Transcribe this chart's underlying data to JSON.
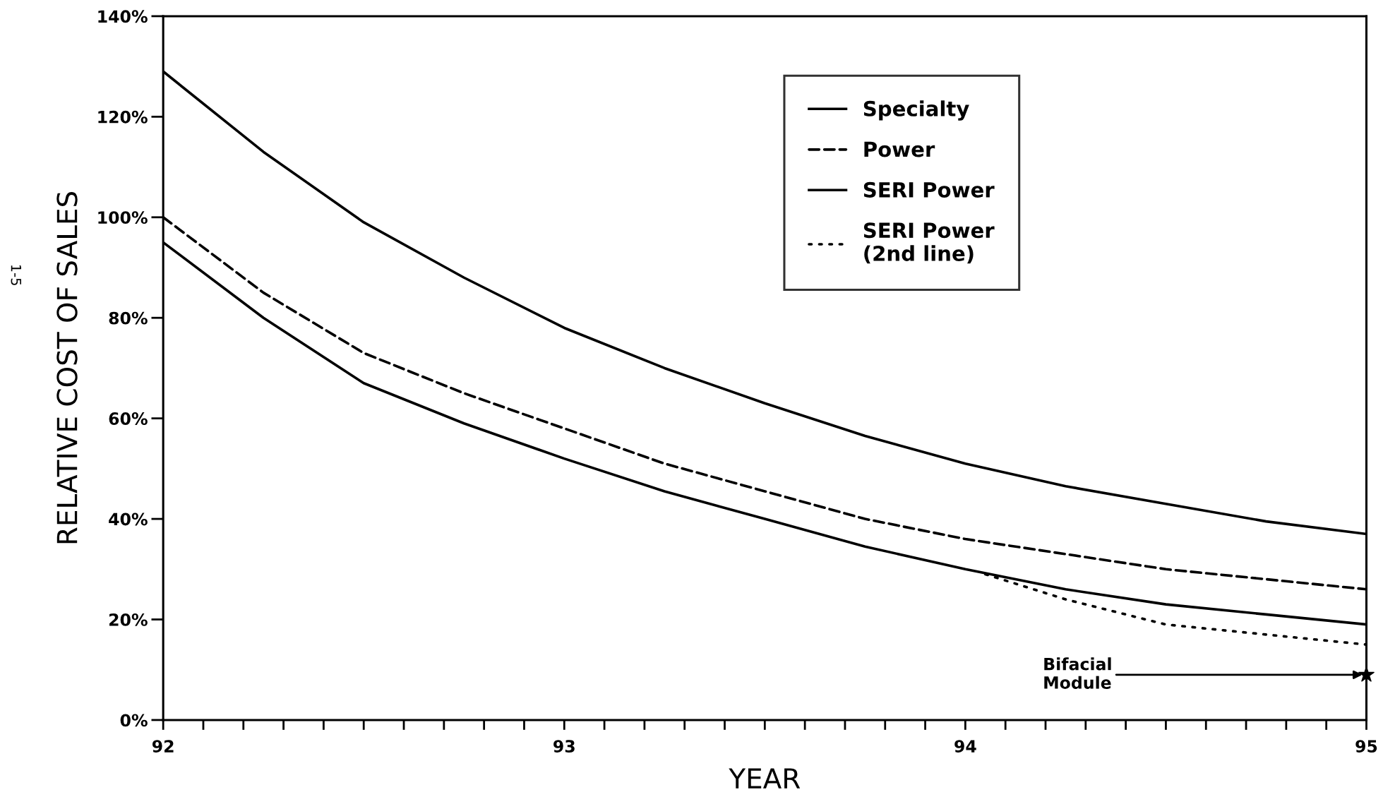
{
  "chart_data": {
    "type": "line",
    "xlabel": "YEAR",
    "ylabel": "RELATIVE COST OF SALES",
    "xlim": [
      92,
      95
    ],
    "ylim": [
      0,
      140
    ],
    "xticks": [
      {
        "value": 92,
        "label": "92"
      },
      {
        "value": 92.1,
        "label": null
      },
      {
        "value": 92.2,
        "label": null
      },
      {
        "value": 92.3,
        "label": null
      },
      {
        "value": 92.4,
        "label": null
      },
      {
        "value": 92.5,
        "label": null
      },
      {
        "value": 92.6,
        "label": null
      },
      {
        "value": 92.7,
        "label": null
      },
      {
        "value": 92.8,
        "label": null
      },
      {
        "value": 92.9,
        "label": null
      },
      {
        "value": 93,
        "label": "93"
      },
      {
        "value": 93.1,
        "label": null
      },
      {
        "value": 93.2,
        "label": null
      },
      {
        "value": 93.3,
        "label": null
      },
      {
        "value": 93.4,
        "label": null
      },
      {
        "value": 93.5,
        "label": null
      },
      {
        "value": 93.6,
        "label": null
      },
      {
        "value": 93.7,
        "label": null
      },
      {
        "value": 93.8,
        "label": null
      },
      {
        "value": 93.9,
        "label": null
      },
      {
        "value": 94,
        "label": "94"
      },
      {
        "value": 94.1,
        "label": null
      },
      {
        "value": 94.2,
        "label": null
      },
      {
        "value": 94.3,
        "label": null
      },
      {
        "value": 94.4,
        "label": null
      },
      {
        "value": 94.5,
        "label": null
      },
      {
        "value": 94.6,
        "label": null
      },
      {
        "value": 94.7,
        "label": null
      },
      {
        "value": 94.8,
        "label": null
      },
      {
        "value": 94.9,
        "label": null
      },
      {
        "value": 95,
        "label": "95"
      }
    ],
    "yticks": [
      {
        "value": 0,
        "label": "0%"
      },
      {
        "value": 20,
        "label": "20%"
      },
      {
        "value": 40,
        "label": "40%"
      },
      {
        "value": 60,
        "label": "60%"
      },
      {
        "value": 80,
        "label": "80%"
      },
      {
        "value": 100,
        "label": "100%"
      },
      {
        "value": 120,
        "label": "120%"
      },
      {
        "value": 140,
        "label": "140%"
      }
    ],
    "grid": false,
    "legend": "top right",
    "marker": "none",
    "series": [
      {
        "name": "Specialty",
        "color": "#000000",
        "line_style": "solid",
        "x": [
          92,
          92.25,
          92.5,
          92.75,
          93,
          93.25,
          93.5,
          93.75,
          94,
          94.25,
          94.5,
          94.75,
          95
        ],
        "values": [
          129,
          113,
          99,
          88,
          78,
          70,
          63,
          56.5,
          51,
          46.5,
          43,
          39.5,
          37
        ]
      },
      {
        "name": "Power",
        "color": "#000000",
        "line_style": "dashed",
        "x": [
          92,
          92.25,
          92.5,
          92.75,
          93,
          93.25,
          93.5,
          93.75,
          94,
          94.25,
          94.5,
          94.75,
          95
        ],
        "values": [
          100,
          85,
          73,
          65,
          58,
          51,
          45.5,
          40,
          36,
          33,
          30,
          28,
          26
        ]
      },
      {
        "name": "SERI Power",
        "color": "#000000",
        "line_style": "solid",
        "x": [
          92,
          92.25,
          92.5,
          92.75,
          93,
          93.25,
          93.5,
          93.75,
          94,
          94.25,
          94.5,
          94.75,
          95
        ],
        "values": [
          95,
          80,
          67,
          59,
          52,
          45.5,
          40,
          34.5,
          30,
          26,
          23,
          21,
          19
        ]
      },
      {
        "name": "SERI Power\n(2nd line)",
        "color": "#000000",
        "line_style": "dotted",
        "x": [
          94.05,
          94.25,
          94.5,
          94.75,
          95
        ],
        "values": [
          29,
          24,
          19,
          17,
          15
        ]
      },
      {
        "type": "scatter",
        "marker": "star",
        "color": "#000000",
        "x": [
          95
        ],
        "values": [
          9
        ]
      }
    ],
    "annotations": [
      {
        "text": "Bifacial\nModule",
        "x": 95,
        "y": 9
      },
      "1-5"
    ]
  }
}
